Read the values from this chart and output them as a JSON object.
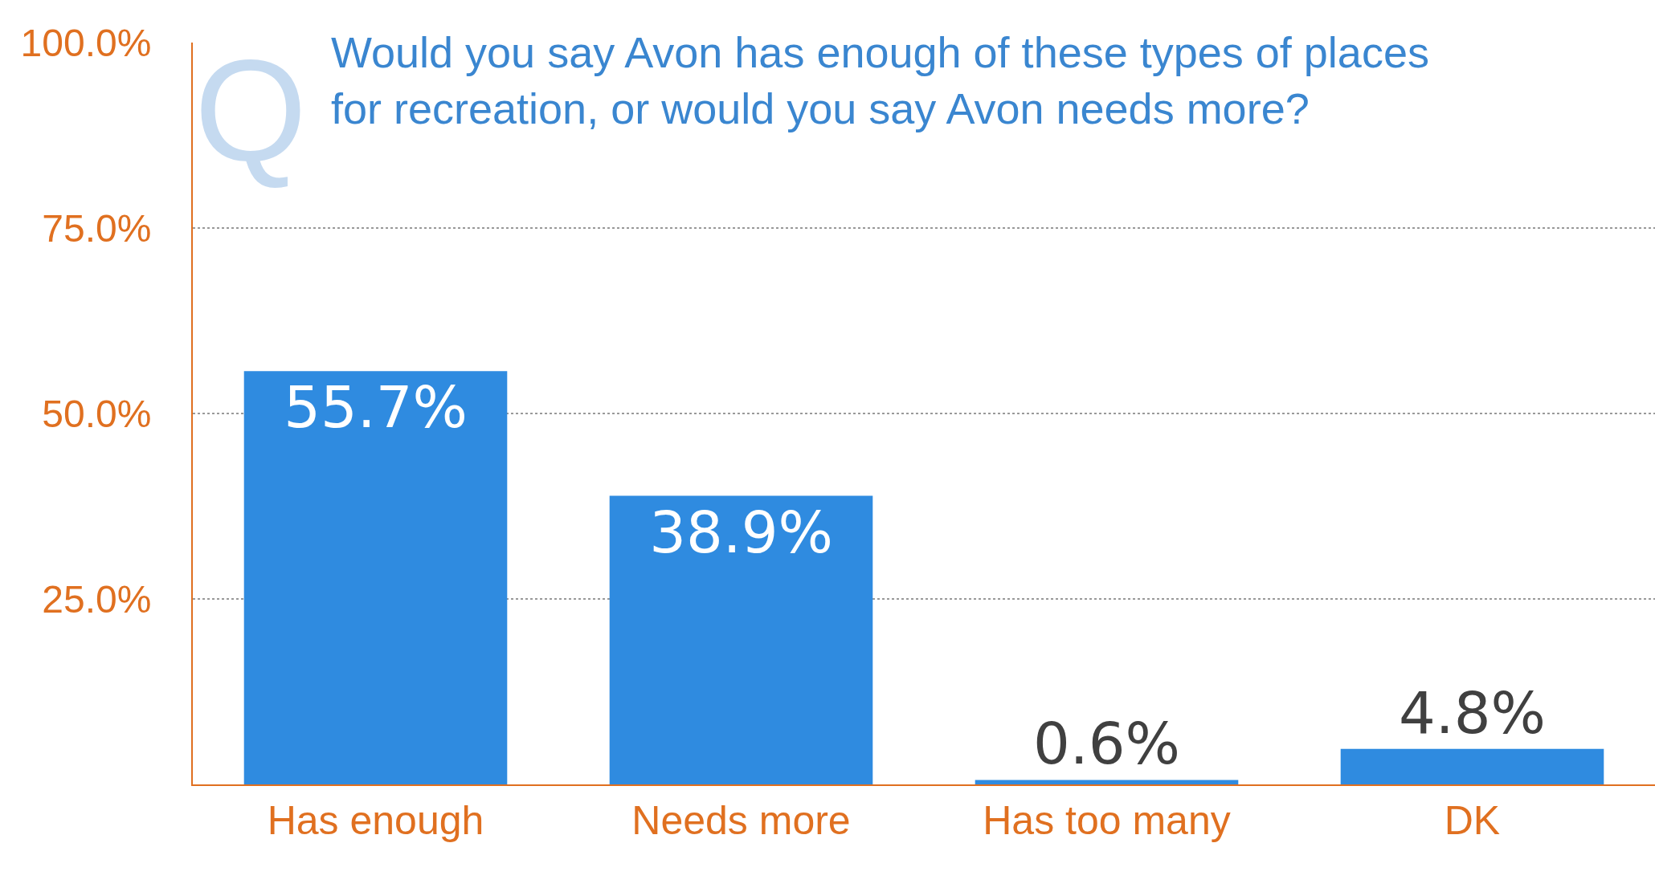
{
  "chart_data": {
    "type": "bar",
    "title": "Would you say Avon has enough of these types of places\nfor recreation, or would you say Avon needs more?",
    "annotations": [
      "Q"
    ],
    "categories": [
      "Has enough",
      "Needs more",
      "Has too many",
      "DK"
    ],
    "values": [
      55.7,
      38.9,
      0.6,
      4.8
    ],
    "value_labels": [
      "55.7%",
      "38.9%",
      "0.6%",
      "4.8%"
    ],
    "color": "#2f8be0",
    "ylim": [
      0,
      100
    ],
    "yticks": [
      {
        "value": 0,
        "label": null
      },
      {
        "value": 25,
        "label": "25.0%"
      },
      {
        "value": 50,
        "label": "50.0%"
      },
      {
        "value": 75,
        "label": "75.0%"
      },
      {
        "value": 100,
        "label": "100.0%"
      }
    ],
    "grid": "y"
  }
}
